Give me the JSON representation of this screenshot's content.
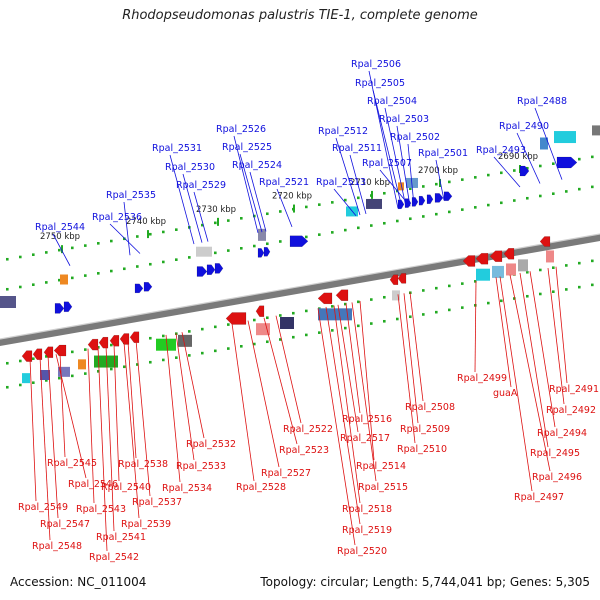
{
  "title": "Rhodopseudomonas palustris TIE-1, complete genome",
  "footer": {
    "accession": "Accession: NC_011004",
    "topology": "Topology: circular; Length: 5,744,041 bp; Genes: 5,305"
  },
  "colors": {
    "forward": "#1010dd",
    "reverse": "#dd1111",
    "backbone": "#7a7a7a",
    "tick": "#22aa22"
  },
  "scale_labels": [
    "2750 kbp",
    "2740 kbp",
    "2730 kbp",
    "2720 kbp",
    "2710 kbp",
    "2700 kbp",
    "2690 kbp"
  ],
  "forward_genes": [
    "Rpal_2544",
    "Rpal_2536",
    "Rpal_2535",
    "Rpal_2531",
    "Rpal_2530",
    "Rpal_2529",
    "Rpal_2526",
    "Rpal_2525",
    "Rpal_2524",
    "Rpal_2521",
    "Rpal_2513",
    "Rpal_2512",
    "Rpal_2511",
    "Rpal_2507",
    "Rpal_2506",
    "Rpal_2505",
    "Rpal_2504",
    "Rpal_2503",
    "Rpal_2502",
    "Rpal_2501",
    "Rpal_2493",
    "Rpal_2490",
    "Rpal_2488"
  ],
  "reverse_genes": [
    "Rpal_2549",
    "Rpal_2548",
    "Rpal_2547",
    "Rpal_2546",
    "Rpal_2545",
    "Rpal_2543",
    "Rpal_2542",
    "Rpal_2541",
    "Rpal_2540",
    "Rpal_2539",
    "Rpal_2538",
    "Rpal_2537",
    "Rpal_2534",
    "Rpal_2533",
    "Rpal_2532",
    "Rpal_2528",
    "Rpal_2527",
    "Rpal_2523",
    "Rpal_2522",
    "Rpal_2520",
    "Rpal_2519",
    "Rpal_2518",
    "Rpal_2517",
    "Rpal_2516",
    "Rpal_2515",
    "Rpal_2514",
    "Rpal_2510",
    "Rpal_2509",
    "Rpal_2508",
    "Rpal_2499",
    "guaA",
    "Rpal_2497",
    "Rpal_2496",
    "Rpal_2495",
    "Rpal_2494",
    "Rpal_2492",
    "Rpal_2491"
  ]
}
